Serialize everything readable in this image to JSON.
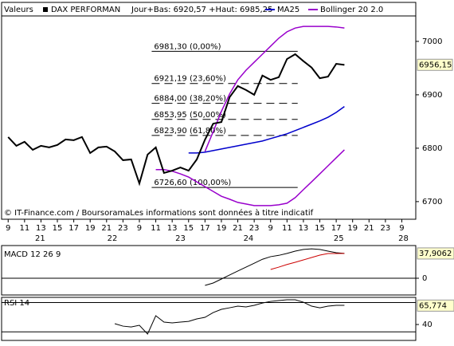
{
  "header": {
    "market": "Valeurs",
    "range": "Jour+Bas: 6920,57 +Haut: 6985,25"
  },
  "footer": "© IT-Finance.com / BoursoramaLes informations sont données à titre indicatif",
  "chart_data": [
    {
      "type": "line",
      "title": "DAX PERFORMAN",
      "x": [
        0,
        1,
        2,
        3,
        4,
        5,
        6,
        7,
        8,
        9,
        10,
        11,
        12,
        13,
        14,
        15,
        16,
        17,
        18,
        19,
        20,
        21,
        22,
        23,
        24,
        25,
        26,
        27,
        28,
        29,
        30,
        31,
        32,
        33,
        34,
        35,
        36,
        37,
        38,
        39,
        40,
        41
      ],
      "xlim": [
        -0.8,
        49.7
      ],
      "xticks": [
        {
          "value": 0,
          "label": "9"
        },
        {
          "value": 2,
          "label": "11"
        },
        {
          "value": 4,
          "label": "13"
        },
        {
          "value": 6,
          "label": "15"
        },
        {
          "value": 8,
          "label": "17"
        },
        {
          "value": 10,
          "label": "19"
        },
        {
          "value": 12,
          "label": "21"
        },
        {
          "value": 14,
          "label": "23"
        },
        {
          "value": 16,
          "label": "9"
        },
        {
          "value": 18,
          "label": "11"
        },
        {
          "value": 20,
          "label": "13"
        },
        {
          "value": 22,
          "label": "15"
        },
        {
          "value": 24,
          "label": "17"
        },
        {
          "value": 26,
          "label": "19"
        },
        {
          "value": 28,
          "label": "21"
        },
        {
          "value": 30,
          "label": "23"
        },
        {
          "value": 32,
          "label": "9"
        },
        {
          "value": 34,
          "label": "11"
        },
        {
          "value": 36,
          "label": "13"
        },
        {
          "value": 38,
          "label": "15"
        },
        {
          "value": 40,
          "label": "17"
        },
        {
          "value": 42,
          "label": "19"
        },
        {
          "value": 44,
          "label": "21"
        },
        {
          "value": 46,
          "label": "23"
        },
        {
          "value": 48,
          "label": "9"
        }
      ],
      "days": [
        {
          "value": 3.9,
          "label": "21"
        },
        {
          "value": 12.7,
          "label": "22"
        },
        {
          "value": 21,
          "label": "23"
        },
        {
          "value": 29.3,
          "label": "24"
        },
        {
          "value": 40.3,
          "label": "25"
        },
        {
          "value": 48.2,
          "label": "28"
        }
      ],
      "ylim": [
        6667,
        7073
      ],
      "yticks": [
        6700,
        6800,
        6900,
        7000
      ],
      "price": {
        "color": "#000000",
        "values": [
          6820.9,
          6804.5,
          6812,
          6797,
          6804.5,
          6801.5,
          6806,
          6816.4,
          6815,
          6821,
          6791,
          6801.5,
          6803,
          6794,
          6777.6,
          6779,
          6734,
          6788,
          6801.5,
          6753.7,
          6758,
          6764,
          6758,
          6779,
          6816,
          6846,
          6849,
          6895.5,
          6916.4,
          6909,
          6900,
          6936,
          6928,
          6933,
          6967,
          6976,
          6963,
          6951,
          6931,
          6934,
          6958,
          6956
        ],
        "last_value": 6956.15,
        "last_label": "6956,15"
      },
      "ma": {
        "name": "MA25",
        "color": "#0000cc",
        "values": [
          null,
          null,
          null,
          null,
          null,
          null,
          null,
          null,
          null,
          null,
          null,
          null,
          null,
          null,
          null,
          null,
          null,
          null,
          null,
          null,
          null,
          null,
          6791,
          6791,
          6792.5,
          6795.5,
          6798.5,
          6801.5,
          6804.5,
          6807.5,
          6810.5,
          6813.5,
          6818,
          6822.4,
          6827,
          6833,
          6839,
          6845,
          6851,
          6858,
          6867,
          6878
        ]
      },
      "bollinger": {
        "name": "Bollinger 20 2.0",
        "color": "#9900cc",
        "upper": [
          null,
          null,
          null,
          null,
          null,
          null,
          null,
          null,
          null,
          null,
          null,
          null,
          null,
          null,
          null,
          null,
          null,
          null,
          null,
          null,
          null,
          null,
          null,
          null,
          6794,
          6831,
          6869,
          6901.5,
          6928,
          6946,
          6961,
          6976,
          6991,
          7006,
          7018,
          7025,
          7028,
          7028,
          7028,
          7028,
          7027,
          7025
        ],
        "lower": [
          null,
          null,
          null,
          null,
          null,
          null,
          null,
          null,
          null,
          null,
          null,
          null,
          null,
          null,
          null,
          null,
          null,
          null,
          6760,
          6760,
          6757,
          6752,
          6746,
          6737,
          6728,
          6719,
          6710,
          6704.5,
          6698.5,
          6695.5,
          6692.5,
          6692.5,
          6692.5,
          6694,
          6697,
          6707.5,
          6722.4,
          6737,
          6752,
          6767,
          6782,
          6797
        ]
      },
      "fibonacci": {
        "xrange": [
          17.5,
          35.3
        ],
        "levels": [
          {
            "value": 6981.3,
            "label": "6981,30 (0,00%)"
          },
          {
            "value": 6921.19,
            "label": "6921,19 (23,60%)"
          },
          {
            "value": 6884,
            "label": "6884,00 (38,20%)"
          },
          {
            "value": 6853.95,
            "label": "6853,95 (50,00%)"
          },
          {
            "value": 6823.9,
            "label": "6823,90 (61,80%)"
          },
          {
            "value": 6726.6,
            "label": "6726,60 (100,00%)"
          }
        ]
      }
    },
    {
      "type": "line",
      "title": "MACD 12 26 9",
      "ylim": [
        -25.6,
        50
      ],
      "yticks": [
        0
      ],
      "series": [
        {
          "color": "#000000",
          "values": [
            null,
            null,
            null,
            null,
            null,
            null,
            null,
            null,
            null,
            null,
            null,
            null,
            null,
            null,
            null,
            null,
            null,
            null,
            null,
            null,
            null,
            null,
            null,
            null,
            -11,
            -7.3,
            -1.2,
            4.9,
            11,
            17,
            23,
            29,
            33,
            35,
            38,
            41.5,
            44,
            45,
            44,
            41.5,
            39,
            38
          ]
        },
        {
          "color": "#cc0000",
          "values": [
            null,
            null,
            null,
            null,
            null,
            null,
            null,
            null,
            null,
            null,
            null,
            null,
            null,
            null,
            null,
            null,
            null,
            null,
            null,
            null,
            null,
            null,
            null,
            null,
            null,
            null,
            null,
            null,
            null,
            null,
            null,
            null,
            13.4,
            17,
            21,
            24.4,
            28,
            31.7,
            35.4,
            37.8,
            37.8,
            37.9
          ]
        }
      ],
      "last_value": 37.9062,
      "last_label": "37,9062"
    },
    {
      "type": "line",
      "title": "RSI 14",
      "ylim": [
        18.3,
        77
      ],
      "yticks": [
        40
      ],
      "levels": [
        30,
        70
      ],
      "series": [
        {
          "color": "#000000",
          "values": [
            null,
            null,
            null,
            null,
            null,
            null,
            null,
            null,
            null,
            null,
            null,
            null,
            null,
            41.1,
            37.8,
            36.7,
            38.9,
            27,
            52,
            43.3,
            42.2,
            43.3,
            44.3,
            47.6,
            49.8,
            56.3,
            60.7,
            62.8,
            65,
            63.9,
            66.1,
            69.3,
            71.5,
            72.6,
            73.7,
            73.7,
            70.4,
            65,
            62.8,
            65,
            66.1,
            66.1
          ]
        }
      ],
      "last_value": 65.774,
      "last_label": "65,774"
    }
  ]
}
